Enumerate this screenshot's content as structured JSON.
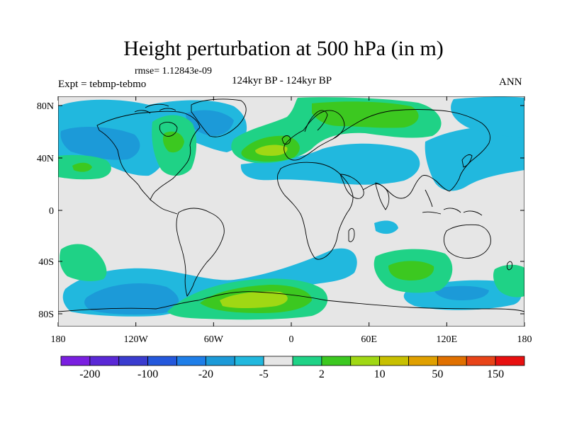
{
  "title": "Height perturbation at 500 hPa (in m)",
  "rmse": "rmse= 1.12843e-09",
  "expt": "Expt = tebmp-tebmo",
  "period": "124kyr BP - 124kyr BP",
  "season": "ANN",
  "map": {
    "lon_ticks": [
      "180",
      "120W",
      "60W",
      "0",
      "60E",
      "120E",
      "180"
    ],
    "lat_ticks": [
      "80N",
      "40N",
      "0",
      "40S",
      "80S"
    ],
    "background_color": "#e6e6e6"
  },
  "colorbar": {
    "colors": [
      "#7a1fe0",
      "#5a28d6",
      "#3a3ccf",
      "#2458dc",
      "#1e7ee8",
      "#1c9ad8",
      "#21b8de",
      "#e6e6e6",
      "#1fd286",
      "#3cc820",
      "#a0d814",
      "#c8c000",
      "#e0a000",
      "#e07000",
      "#e84418",
      "#e81010"
    ],
    "labels": [
      "-200",
      "-100",
      "-20",
      "-5",
      "2",
      "10",
      "50",
      "150"
    ]
  },
  "palette": {
    "neg_light": "#21b8de",
    "neg_mid": "#1c9ad8",
    "neg_dark": "#1e7ee8",
    "pos_light": "#1fd286",
    "pos_mid": "#3cc820",
    "pos_strong": "#a0d814"
  }
}
